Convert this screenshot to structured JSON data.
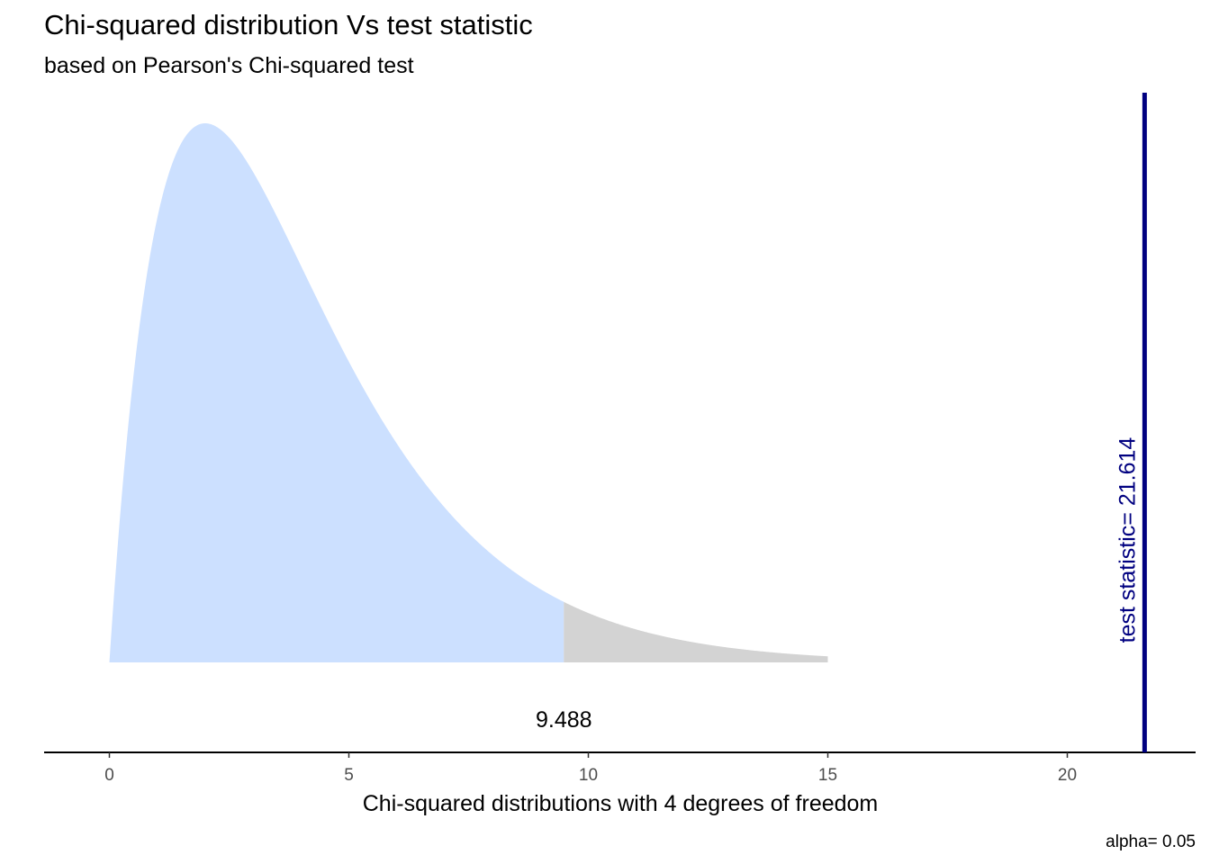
{
  "chart_data": {
    "type": "area",
    "title": "Chi-squared distribution Vs test statistic",
    "subtitle": "based on Pearson's Chi-squared test",
    "xlabel": "Chi-squared distributions with 4 degrees of freedom",
    "ylabel": "",
    "degrees_of_freedom": 4,
    "xlim": [
      0,
      21.614
    ],
    "x_ticks": [
      0,
      5,
      10,
      15,
      20
    ],
    "critical_value": 9.488,
    "critical_label": "9.488",
    "test_statistic": 21.614,
    "test_statistic_label": "test statistic= 21.614",
    "caption": "alpha= 0.05",
    "curve_x_max": 15,
    "grid": false,
    "colors": {
      "acceptance_fill": "#cce0ff",
      "rejection_fill": "#d3d3d3",
      "statistic_line": "#000080",
      "axis": "#000000"
    }
  }
}
